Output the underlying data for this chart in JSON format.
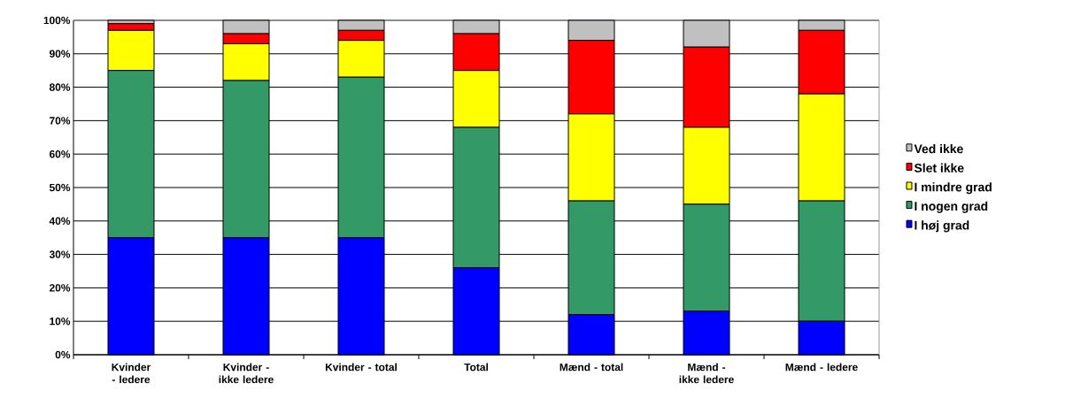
{
  "chart_data": {
    "type": "bar",
    "stacked": true,
    "categories": [
      "Kvinder - ledere",
      "Kvinder - ikke ledere",
      "Kvinder - total",
      "Total",
      "Mænd - total",
      "Mænd - ikke ledere",
      "Mænd - ledere"
    ],
    "series": [
      {
        "name": "I høj grad",
        "color": "#0000ff",
        "values": [
          35,
          35,
          35,
          26,
          12,
          13,
          10
        ]
      },
      {
        "name": "I nogen grad",
        "color": "#339966",
        "values": [
          50,
          47,
          48,
          42,
          34,
          32,
          36
        ]
      },
      {
        "name": "I mindre grad",
        "color": "#ffff00",
        "values": [
          12,
          11,
          11,
          17,
          26,
          23,
          32
        ]
      },
      {
        "name": "Slet ikke",
        "color": "#ff0000",
        "values": [
          2,
          3,
          3,
          11,
          22,
          24,
          19
        ]
      },
      {
        "name": "Ved ikke",
        "color": "#c0c0c0",
        "values": [
          1,
          4,
          3,
          4,
          6,
          8,
          3
        ]
      }
    ],
    "ylim": [
      0,
      100
    ],
    "yticks": [
      {
        "value": 0,
        "label": "0%"
      },
      {
        "value": 10,
        "label": "10%"
      },
      {
        "value": 20,
        "label": "20%"
      },
      {
        "value": 30,
        "label": "30%"
      },
      {
        "value": 40,
        "label": "40%"
      },
      {
        "value": 50,
        "label": "50%"
      },
      {
        "value": 60,
        "label": "60%"
      },
      {
        "value": 70,
        "label": "70%"
      },
      {
        "value": 80,
        "label": "80%"
      },
      {
        "value": 90,
        "label": "90%"
      },
      {
        "value": 100,
        "label": "100%"
      }
    ],
    "grid": "y",
    "legend": "right"
  }
}
